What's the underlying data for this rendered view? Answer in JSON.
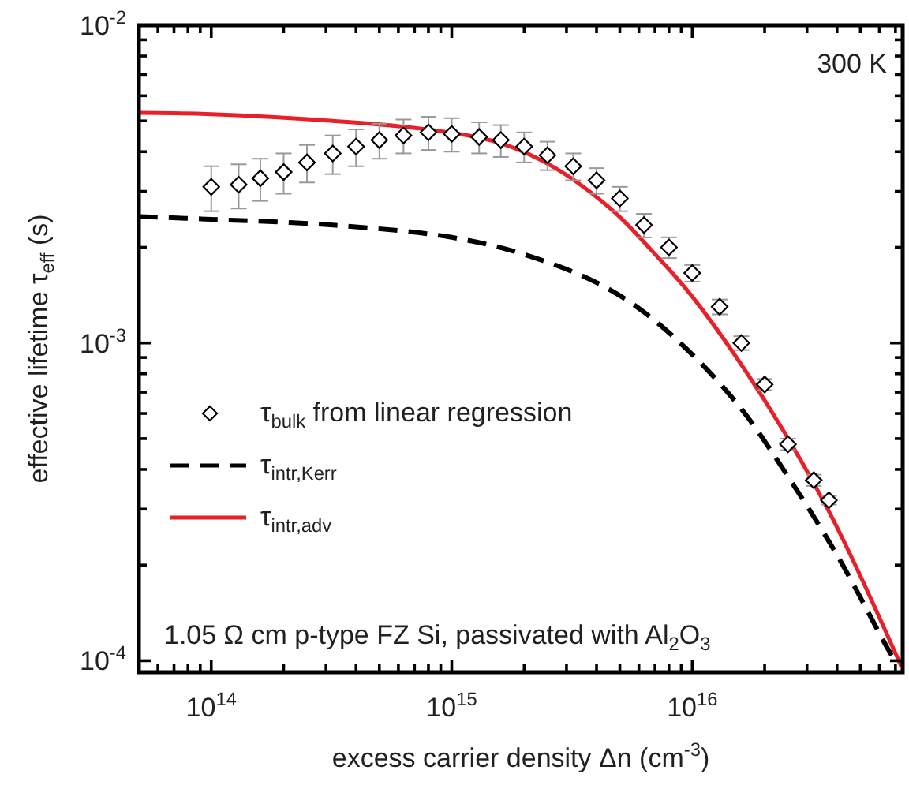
{
  "chart_data": {
    "type": "scatter",
    "xlabel": "excess carrier density Δn (cm$^{-3}$)",
    "ylabel": "effective lifetime  τ$_{eff}$ (s)",
    "log": "xy",
    "legend": "left",
    "grid": false,
    "xlim": [
      50000000000000.0,
      7.5e+16
    ],
    "ylim": [
      9.2e-05,
      0.01
    ],
    "xticks": [
      {
        "value": 60000000000000.0,
        "label": null
      },
      {
        "value": 70000000000000.0,
        "label": null
      },
      {
        "value": 80000000000000.0,
        "label": null
      },
      {
        "value": 90000000000000.0,
        "label": null
      },
      {
        "value": 100000000000000.0,
        "label": "10$^{14}$"
      },
      {
        "value": 200000000000000.0,
        "label": null
      },
      {
        "value": 300000000000000.0,
        "label": null
      },
      {
        "value": 400000000000000.0,
        "label": null
      },
      {
        "value": 500000000000000.0,
        "label": null
      },
      {
        "value": 600000000000000.0,
        "label": null
      },
      {
        "value": 700000000000000.0,
        "label": null
      },
      {
        "value": 800000000000000.0,
        "label": null
      },
      {
        "value": 900000000000000.0,
        "label": null
      },
      {
        "value": 1000000000000000.0,
        "label": "10$^{15}$"
      },
      {
        "value": 2000000000000000.0,
        "label": null
      },
      {
        "value": 3000000000000000.0,
        "label": null
      },
      {
        "value": 4000000000000000.0,
        "label": null
      },
      {
        "value": 5000000000000000.0,
        "label": null
      },
      {
        "value": 6000000000000000.0,
        "label": null
      },
      {
        "value": 7000000000000000.0,
        "label": null
      },
      {
        "value": 8000000000000000.0,
        "label": null
      },
      {
        "value": 9000000000000000.0,
        "label": null
      },
      {
        "value": 1e+16,
        "label": "10$^{16}$"
      },
      {
        "value": 2e+16,
        "label": null
      },
      {
        "value": 3e+16,
        "label": null
      },
      {
        "value": 4e+16,
        "label": null
      },
      {
        "value": 5e+16,
        "label": null
      },
      {
        "value": 6e+16,
        "label": null
      },
      {
        "value": 7e+16,
        "label": null
      }
    ],
    "yticks": [
      {
        "value": 0.0001,
        "label": "10$^{-4}$"
      },
      {
        "value": 0.0002,
        "label": null
      },
      {
        "value": 0.0003,
        "label": null
      },
      {
        "value": 0.0004,
        "label": null
      },
      {
        "value": 0.0005,
        "label": null
      },
      {
        "value": 0.0006,
        "label": null
      },
      {
        "value": 0.0007,
        "label": null
      },
      {
        "value": 0.0008,
        "label": null
      },
      {
        "value": 0.0009,
        "label": null
      },
      {
        "value": 0.001,
        "label": "10$^{-3}$"
      },
      {
        "value": 0.002,
        "label": null
      },
      {
        "value": 0.003,
        "label": null
      },
      {
        "value": 0.004,
        "label": null
      },
      {
        "value": 0.005,
        "label": null
      },
      {
        "value": 0.006,
        "label": null
      },
      {
        "value": 0.007,
        "label": null
      },
      {
        "value": 0.008,
        "label": null
      },
      {
        "value": 0.009,
        "label": null
      },
      {
        "value": 0.01,
        "label": "10$^{-2}$"
      }
    ],
    "series": [
      {
        "name": "τ$_{bulk}$ from linear regression",
        "marker": "diamond",
        "color": "#000000",
        "x": [
          100000000000000.0,
          130000000000000.0,
          160000000000000.0,
          200000000000000.0,
          250000000000000.0,
          320000000000000.0,
          400000000000000.0,
          500000000000000.0,
          630000000000000.0,
          800000000000000.0,
          1000000000000000.0,
          1300000000000000.0,
          1600000000000000.0,
          2000000000000000.0,
          2500000000000000.0,
          3200000000000000.0,
          4000000000000000.0,
          5000000000000000.0,
          6300000000000000.0,
          8000000000000000.0,
          1e+16,
          1.3e+16,
          1.6e+16,
          2e+16,
          2.5e+16,
          3.2e+16,
          3.7e+16
        ],
        "values": [
          0.0031,
          0.00315,
          0.0033,
          0.00345,
          0.0037,
          0.00395,
          0.00415,
          0.00435,
          0.0045,
          0.0046,
          0.00455,
          0.00445,
          0.00435,
          0.00415,
          0.0039,
          0.0036,
          0.00325,
          0.00285,
          0.00235,
          0.002,
          0.00166,
          0.0013,
          0.001,
          0.00074,
          0.00048,
          0.00037,
          0.00032
        ],
        "errors": [
          0.0005,
          0.0005,
          0.0005,
          0.0005,
          0.0005,
          0.00055,
          0.00055,
          0.00055,
          0.00055,
          0.00055,
          0.00055,
          0.0005,
          0.0005,
          0.00045,
          0.0004,
          0.00035,
          0.0003,
          0.00025,
          0.0002,
          0.00015,
          0.0001,
          7e-05,
          5e-05,
          3e-05,
          2e-05,
          1.5e-05,
          1e-05
        ]
      },
      {
        "name": "τ$_{intr,Kerr}$",
        "type": "line",
        "line_style": "dashed",
        "color": "#000000",
        "x": [
          50000000000000.0,
          100000000000000.0,
          320000000000000.0,
          1000000000000000.0,
          2000000000000000.0,
          4000000000000000.0,
          6300000000000000.0,
          1e+16,
          1.6e+16,
          2.5e+16,
          4e+16,
          6.6e+16,
          7.1e+16
        ],
        "values": [
          0.0025,
          0.00245,
          0.00235,
          0.00215,
          0.0019,
          0.00155,
          0.00125,
          0.00092,
          0.00062,
          0.00038,
          0.000215,
          0.000107,
          9.8e-05
        ]
      },
      {
        "name": "τ$_{intr,adv}$",
        "type": "line",
        "line_style": "solid",
        "color": "#e8202a",
        "x": [
          50000000000000.0,
          100000000000000.0,
          320000000000000.0,
          790000000000000.0,
          1600000000000000.0,
          2700000000000000.0,
          4700000000000000.0,
          6800000000000000.0,
          1e+16,
          1.95e+16,
          3.7e+16,
          7.4e+16
        ],
        "values": [
          0.0053,
          0.00525,
          0.005,
          0.0047,
          0.00425,
          0.00355,
          0.0026,
          0.00195,
          0.0014,
          0.00068,
          0.000295,
          9.6e-05
        ]
      }
    ],
    "annotations": [
      "300 K",
      "1.05 Ω cm p-type FZ Si, passivated with Al$_{2}$O$_{3}$"
    ]
  }
}
